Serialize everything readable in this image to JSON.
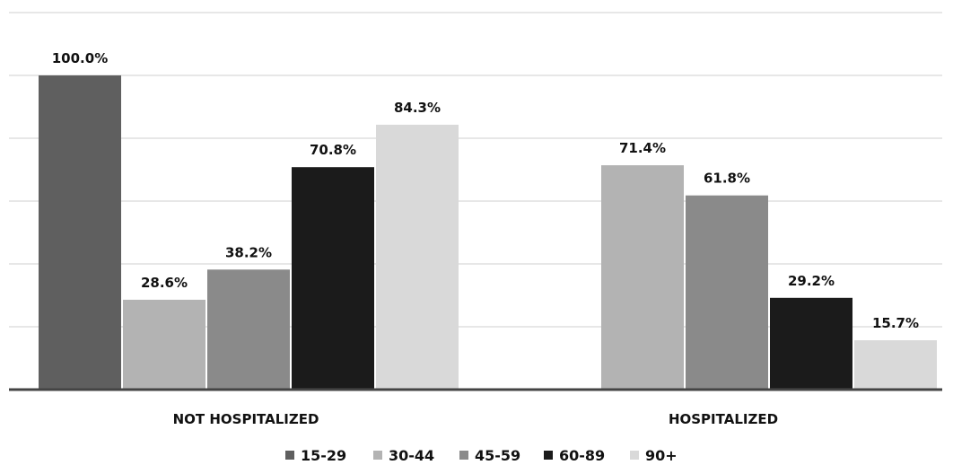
{
  "chart_data": {
    "type": "bar",
    "categories": [
      "NOT HOSPITALIZED",
      "HOSPITALIZED"
    ],
    "series": [
      {
        "name": "15-29",
        "color": "#5f5f5f",
        "values": [
          100.0,
          null
        ],
        "labels": [
          "100.0%",
          ""
        ]
      },
      {
        "name": "30-44",
        "color": "#b3b3b3",
        "values": [
          28.6,
          71.4
        ],
        "labels": [
          "28.6%",
          "71.4%"
        ]
      },
      {
        "name": "45-59",
        "color": "#8a8a8a",
        "values": [
          38.2,
          61.8
        ],
        "labels": [
          "38.2%",
          "61.8%"
        ]
      },
      {
        "name": "60-89",
        "color": "#1b1b1b",
        "values": [
          70.8,
          29.2
        ],
        "labels": [
          "70.8%",
          "29.2%"
        ]
      },
      {
        "name": "90+",
        "color": "#d9d9d9",
        "values": [
          84.3,
          15.7
        ],
        "labels": [
          "84.3%",
          "15.7%"
        ]
      }
    ],
    "ylim": [
      0,
      120
    ],
    "grid": true,
    "legend": "bottom",
    "title": "",
    "xlabel": "",
    "ylabel": ""
  }
}
